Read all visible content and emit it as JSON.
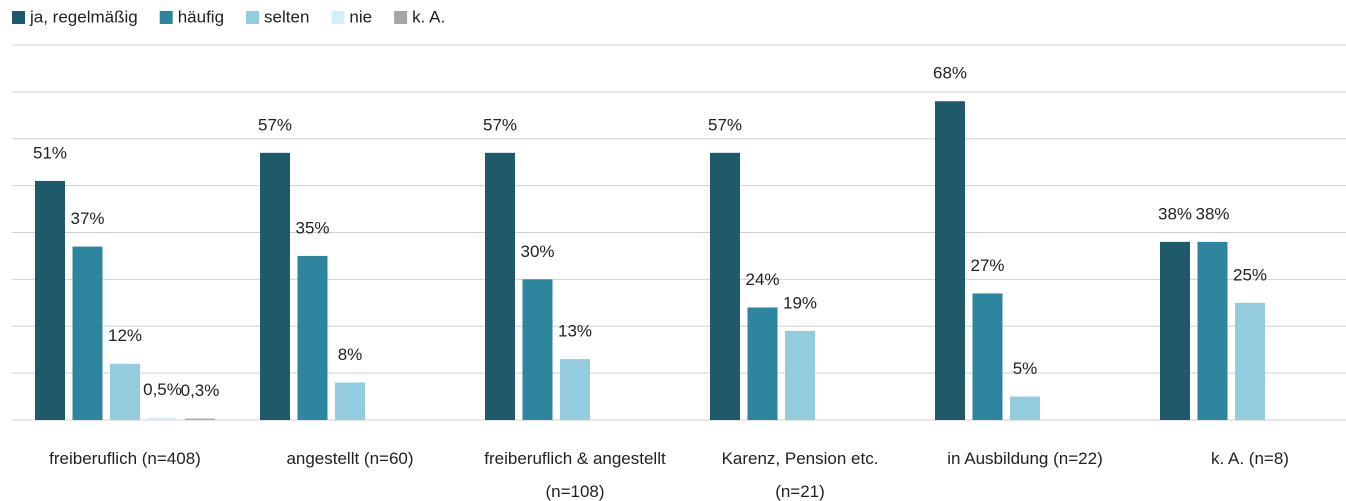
{
  "chart_data": {
    "type": "bar",
    "categories": [
      "freiberuflich (n=408)",
      "angestellt (n=60)",
      "freiberuflich & angestellt (n=108)",
      "Karenz, Pension etc.(n=21)",
      "in Ausbildung (n=22)",
      "k. A. (n=8)"
    ],
    "series": [
      {
        "name": "ja, regelmäßig",
        "color": "#1f5a6a",
        "values": [
          51,
          57,
          57,
          57,
          68,
          38
        ],
        "value_labels": [
          "51%",
          "57%",
          "57%",
          "57%",
          "68%",
          "38%"
        ]
      },
      {
        "name": "häufig",
        "color": "#2e869e",
        "values": [
          37,
          35,
          30,
          24,
          27,
          38
        ],
        "value_labels": [
          "37%",
          "35%",
          "30%",
          "24%",
          "27%",
          "38%"
        ]
      },
      {
        "name": "selten",
        "color": "#93cddd",
        "values": [
          12,
          8,
          13,
          19,
          5,
          25
        ],
        "value_labels": [
          "12%",
          "8%",
          "13%",
          "19%",
          "5%",
          "25%"
        ]
      },
      {
        "name": "nie",
        "color": "#d6eef5",
        "values": [
          0.5,
          null,
          null,
          null,
          null,
          null
        ],
        "value_labels": [
          "0,5%",
          null,
          null,
          null,
          null,
          null
        ]
      },
      {
        "name": "k. A.",
        "color": "#a6a6a6",
        "values": [
          0.3,
          null,
          null,
          null,
          null,
          null
        ],
        "value_labels": [
          "0,3%",
          null,
          null,
          null,
          null,
          null
        ]
      }
    ],
    "ylim": [
      0,
      80
    ],
    "yticks": [
      0,
      10,
      20,
      30,
      40,
      50,
      60,
      70,
      80
    ],
    "grid": true,
    "legend": "top"
  }
}
